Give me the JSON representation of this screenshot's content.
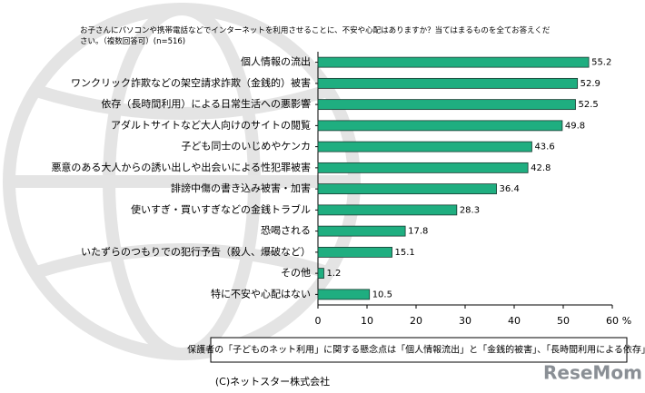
{
  "chart_data": {
    "type": "bar",
    "orientation": "horizontal",
    "title": "お子さんにパソコンや携帯電話などでインターネットを利用させることに、不安や心配はありますか？当てはまるものを全てお答えください。（複数回答可）(n=516)",
    "categories": [
      "個人情報の流出",
      "ワンクリック詐欺などの架空請求詐欺（金銭的）被害",
      "依存（長時間利用）による日常生活への悪影響",
      "アダルトサイトなど大人向けのサイトの閲覧",
      "子ども同士のいじめやケンカ",
      "悪意のある大人からの誘い出しや出会いによる性犯罪被害",
      "誹謗中傷の書き込み被害・加害",
      "使いすぎ・買いすぎなどの金銭トラブル",
      "恐喝される",
      "いたずらのつもりでの犯行予告（殺人、爆破など）",
      "その他",
      "特に不安や心配はない"
    ],
    "values": [
      55.2,
      52.9,
      52.5,
      49.8,
      43.6,
      42.8,
      36.4,
      28.3,
      17.8,
      15.1,
      1.2,
      10.5
    ],
    "color": "#1fae80",
    "xlim": [
      0,
      60
    ],
    "xticks": [
      0,
      10,
      20,
      30,
      40,
      50,
      60
    ],
    "xlabel": "%",
    "caption": "保護者の「子どものネット利用」に関する懸念点は「個人情報流出」と「金銭的被害」、「長時間利用による依存」",
    "copyright": "(C)ネットスター株式会社",
    "watermark": "ReseMom"
  }
}
